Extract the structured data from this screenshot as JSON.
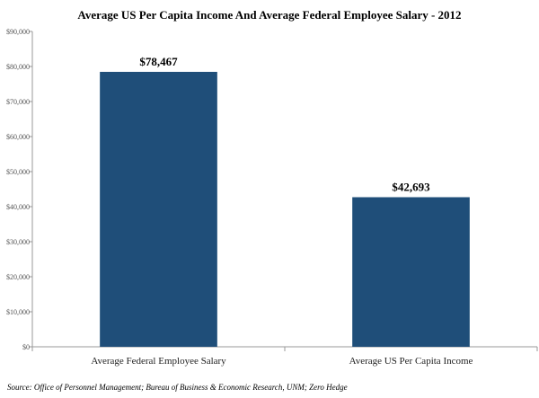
{
  "chart_data": {
    "type": "bar",
    "title": "Average US Per Capita Income And Average Federal Employee Salary - 2012",
    "categories": [
      "Average Federal Employee Salary",
      "Average US Per Capita Income"
    ],
    "values": [
      78467,
      42693
    ],
    "data_labels": [
      "$78,467",
      "$42,693"
    ],
    "ylim": [
      0,
      90000
    ],
    "y_ticks": [
      0,
      10000,
      20000,
      30000,
      40000,
      50000,
      60000,
      70000,
      80000,
      90000
    ],
    "y_tick_labels": [
      "$0",
      "$10,000",
      "$20,000",
      "$30,000",
      "$40,000",
      "$50,000",
      "$60,000",
      "$70,000",
      "$80,000",
      "$90,000"
    ],
    "xlabel": "",
    "ylabel": "",
    "grid": false,
    "bar_color": "#1f4e79",
    "source": "Source: Office of Personnel Management; Bureau of Business  & Economic Research, UNM; Zero Hedge"
  }
}
